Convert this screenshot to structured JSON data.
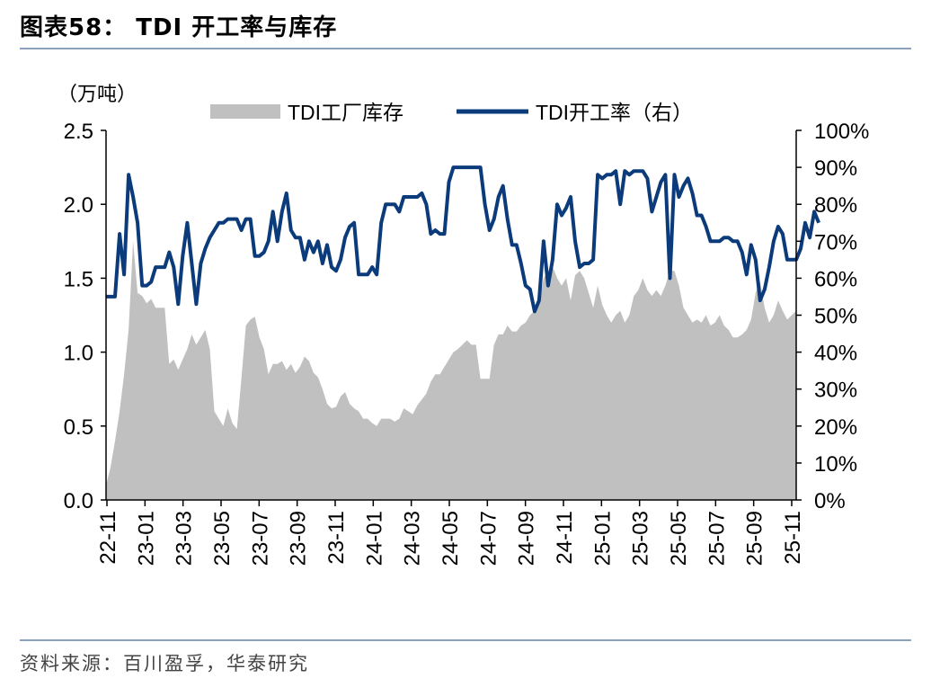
{
  "header": {
    "title": "图表58：  TDI 开工率与库存"
  },
  "footer": {
    "source": "资料来源：百川盈孚，华泰研究"
  },
  "chart_data": {
    "type": "area+line",
    "title": "TDI 开工率与库存",
    "left_axis_unit": "（万吨）",
    "left_ylim": [
      0,
      2.5
    ],
    "left_ticks": [
      "0.0",
      "0.5",
      "1.0",
      "1.5",
      "2.0",
      "2.5"
    ],
    "right_ylim": [
      0,
      100
    ],
    "right_ticks": [
      "0%",
      "10%",
      "20%",
      "30%",
      "40%",
      "50%",
      "60%",
      "70%",
      "80%",
      "90%",
      "100%"
    ],
    "x_ticks": [
      "22-11",
      "23-01",
      "23-03",
      "23-05",
      "23-07",
      "23-09",
      "23-11",
      "24-01",
      "24-03",
      "24-05",
      "24-07",
      "24-09",
      "24-11",
      "25-01",
      "25-03",
      "25-05",
      "25-07",
      "25-09",
      "25-11"
    ],
    "legend": [
      "TDI工厂库存",
      "TDI开工率（右）"
    ],
    "colors": {
      "inventory": "#c0c0c0",
      "rate": "#0b3b7a"
    },
    "series": [
      {
        "name": "TDI工厂库存",
        "axis": "left",
        "unit": "万吨",
        "values": [
          0.1,
          0.22,
          0.4,
          0.6,
          0.85,
          1.15,
          1.75,
          1.4,
          1.38,
          1.33,
          1.36,
          1.3,
          1.3,
          1.3,
          0.92,
          0.95,
          0.88,
          0.95,
          1.02,
          1.12,
          1.05,
          1.1,
          1.15,
          1.02,
          0.6,
          0.55,
          0.5,
          0.62,
          0.52,
          0.48,
          0.82,
          1.18,
          1.22,
          1.24,
          1.1,
          1.02,
          0.85,
          0.92,
          0.92,
          0.94,
          0.88,
          0.92,
          0.86,
          0.9,
          0.97,
          0.94,
          0.86,
          0.83,
          0.75,
          0.65,
          0.62,
          0.63,
          0.7,
          0.73,
          0.65,
          0.62,
          0.6,
          0.55,
          0.55,
          0.52,
          0.5,
          0.55,
          0.55,
          0.55,
          0.53,
          0.55,
          0.62,
          0.6,
          0.58,
          0.64,
          0.68,
          0.72,
          0.8,
          0.85,
          0.85,
          0.9,
          0.95,
          1.0,
          1.02,
          1.05,
          1.08,
          1.05,
          1.05,
          0.82,
          0.82,
          0.82,
          1.05,
          1.12,
          1.12,
          1.18,
          1.14,
          1.14,
          1.18,
          1.2,
          1.25,
          1.28,
          1.32,
          1.5,
          1.55,
          1.58,
          1.5,
          1.45,
          1.5,
          1.35,
          1.52,
          1.55,
          1.5,
          1.4,
          1.3,
          1.45,
          1.32,
          1.25,
          1.2,
          1.25,
          1.28,
          1.2,
          1.25,
          1.38,
          1.42,
          1.5,
          1.42,
          1.38,
          1.42,
          1.38,
          1.45,
          1.55,
          1.55,
          1.45,
          1.3,
          1.25,
          1.2,
          1.22,
          1.2,
          1.25,
          1.18,
          1.2,
          1.25,
          1.18,
          1.15,
          1.1,
          1.1,
          1.12,
          1.15,
          1.22,
          1.4,
          1.48,
          1.3,
          1.2,
          1.25,
          1.35,
          1.28,
          1.22,
          1.25,
          1.28
        ]
      },
      {
        "name": "TDI开工率（右）",
        "axis": "right",
        "unit": "%",
        "values": [
          55,
          55,
          55,
          72,
          61,
          88,
          82,
          75,
          58,
          58,
          59,
          63,
          63,
          63,
          67,
          63,
          53,
          66,
          75,
          64,
          53,
          64,
          68,
          71,
          73,
          75,
          75,
          76,
          76,
          76,
          73,
          76,
          76,
          66,
          66,
          67,
          70,
          78,
          70,
          78,
          83,
          73,
          71,
          71,
          65,
          70,
          67,
          70,
          64,
          69,
          63,
          62,
          65,
          71,
          74,
          75,
          61,
          61,
          61,
          63,
          61,
          75,
          80,
          80,
          80,
          78,
          82,
          82,
          82,
          82,
          83,
          80,
          72,
          73,
          72,
          72,
          86,
          90,
          90,
          90,
          90,
          90,
          90,
          90,
          80,
          73,
          76,
          82,
          85,
          76,
          69,
          69,
          64,
          58,
          57,
          51,
          54,
          70,
          58,
          65,
          80,
          77,
          79,
          82,
          70,
          63,
          64,
          64,
          65,
          88,
          87,
          88,
          88,
          89,
          80,
          89,
          88,
          89,
          89,
          89,
          87,
          78,
          82,
          86,
          88,
          60,
          88,
          82,
          85,
          87,
          83,
          77,
          77,
          74,
          70,
          70,
          70,
          71,
          71,
          70,
          70,
          67,
          61,
          69,
          65,
          54,
          57,
          63,
          70,
          74,
          72,
          65,
          65,
          65,
          68,
          75,
          71,
          78,
          75
        ]
      }
    ]
  }
}
